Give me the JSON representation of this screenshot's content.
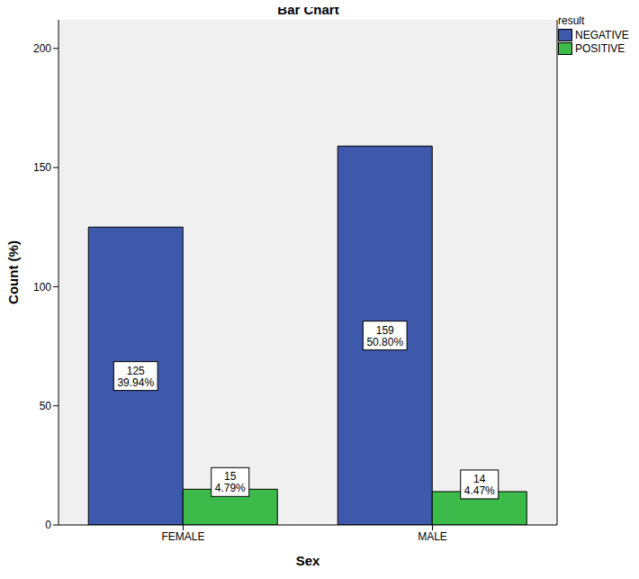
{
  "chart_data": {
    "type": "bar",
    "title": "Bar Chart",
    "x_label": "Sex",
    "y_label": "Count (%)",
    "legend_title": "result",
    "categories": [
      "FEMALE",
      "MALE"
    ],
    "series": [
      {
        "name": "NEGATIVE",
        "color": "#3e58ac",
        "values": [
          125,
          159
        ],
        "value_labels": [
          "125\n39.94%",
          "159\n50.80%"
        ]
      },
      {
        "name": "POSITIVE",
        "color": "#3dbb4a",
        "values": [
          15,
          14
        ],
        "value_labels": [
          "15\n4.79%",
          "14\n4.47%"
        ]
      }
    ],
    "ylim": [
      0,
      212
    ],
    "yticks": [
      0,
      50,
      100,
      150,
      200
    ],
    "grid": false,
    "legend": "upper right",
    "data_labels": true
  }
}
